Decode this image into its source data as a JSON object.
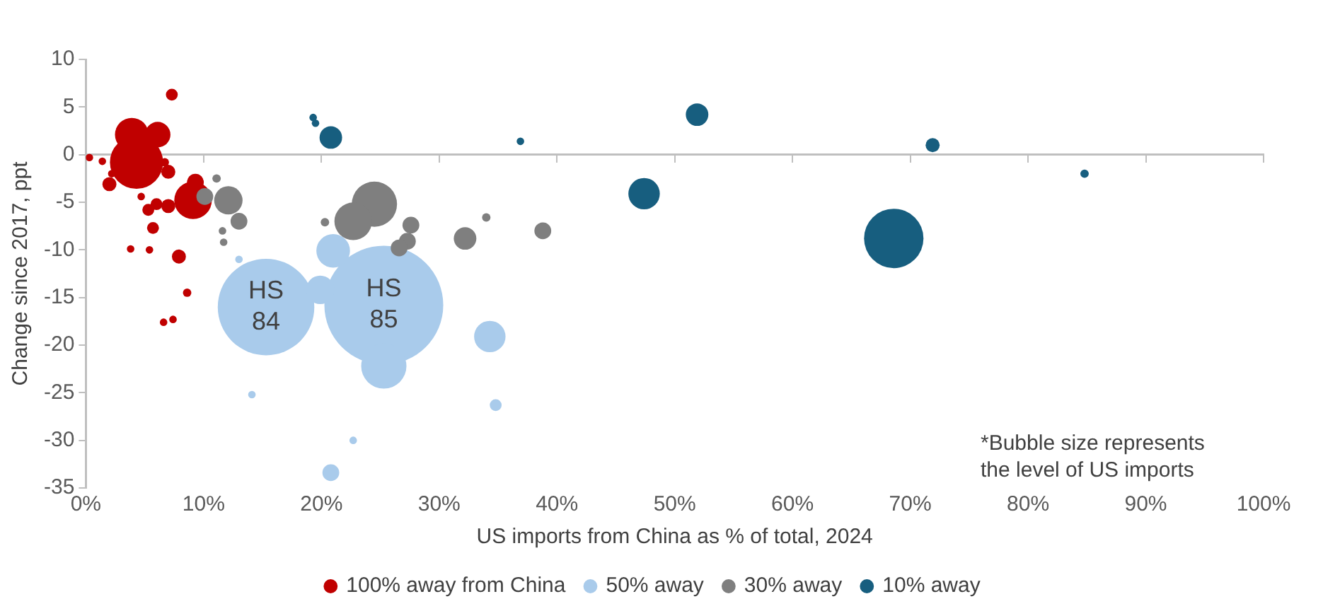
{
  "chart_data": {
    "type": "bubble",
    "xlabel": "US imports from China as % of total, 2024",
    "ylabel": "Change since 2017, ppt",
    "xlim": [
      0,
      100
    ],
    "xticks": [
      {
        "value": 0,
        "label": "0%"
      },
      {
        "value": 10,
        "label": "10%"
      },
      {
        "value": 20,
        "label": "20%"
      },
      {
        "value": 30,
        "label": "30%"
      },
      {
        "value": 40,
        "label": "40%"
      },
      {
        "value": 50,
        "label": "50%"
      },
      {
        "value": 60,
        "label": "60%"
      },
      {
        "value": 70,
        "label": "70%"
      },
      {
        "value": 80,
        "label": "80%"
      },
      {
        "value": 90,
        "label": "90%"
      },
      {
        "value": 100,
        "label": "100%"
      }
    ],
    "ylim": [
      -35,
      10
    ],
    "yticks": [
      -35,
      -30,
      -25,
      -20,
      -15,
      -10,
      -5,
      0,
      5,
      10
    ],
    "grid": false,
    "legend": "bottom",
    "ref_lines": [
      {
        "axis": "y",
        "value": 0,
        "color": "#bfbfbf"
      }
    ],
    "series": [
      {
        "name": "100% away from China",
        "color": "#c00000",
        "x": [
          7.3,
          3.9,
          6.1,
          4.3,
          6.7,
          7.0,
          2.0,
          9.1,
          9.3,
          5.3,
          6.0,
          7.0,
          5.7,
          7.9,
          8.6,
          3.8,
          5.4,
          6.6,
          7.4,
          0.3,
          1.4,
          2.2,
          4.7
        ],
        "values": [
          6.3,
          2.1,
          2.1,
          -0.8,
          -0.8,
          -1.8,
          -3.1,
          -4.8,
          -2.9,
          -5.8,
          -5.2,
          -5.4,
          -7.7,
          -10.7,
          -14.5,
          -9.9,
          -10.0,
          -17.6,
          -17.3,
          -0.3,
          -0.7,
          -2.0,
          -4.4
        ],
        "sizes": [
          0.01,
          0.08,
          0.046,
          0.2,
          0.005,
          0.014,
          0.014,
          0.1,
          0.02,
          0.01,
          0.01,
          0.014,
          0.01,
          0.014,
          0.005,
          0.004,
          0.004,
          0.004,
          0.004,
          0.004,
          0.004,
          0.004,
          0.004
        ]
      },
      {
        "name": "50% away",
        "color": "#a9cbeb",
        "x": [
          15.3,
          25.3,
          25.3,
          21.0,
          19.9,
          34.3,
          34.8,
          20.8,
          14.1,
          22.7,
          13.0
        ],
        "values": [
          -16.0,
          -15.8,
          -22.2,
          -10.1,
          -14.2,
          -19.1,
          -26.3,
          -33.4,
          -25.2,
          -30.0,
          -11.0
        ],
        "sizes": [
          0.66,
          1,
          0.145,
          0.08,
          0.057,
          0.07,
          0.01,
          0.02,
          0.004,
          0.004,
          0.004
        ]
      },
      {
        "name": "30% away",
        "color": "#7f7f7f",
        "x": [
          11.1,
          10.1,
          12.1,
          13.0,
          11.6,
          11.7,
          20.3,
          24.5,
          22.7,
          27.6,
          27.3,
          26.6,
          32.2,
          34.0,
          38.8
        ],
        "values": [
          -2.5,
          -4.4,
          -4.8,
          -7.0,
          -8.0,
          -9.2,
          -7.1,
          -5.2,
          -7.0,
          -7.4,
          -9.1,
          -9.8,
          -8.8,
          -6.6,
          -8.0
        ],
        "sizes": [
          0.005,
          0.02,
          0.057,
          0.02,
          0.004,
          0.004,
          0.005,
          0.145,
          0.1,
          0.02,
          0.02,
          0.02,
          0.036,
          0.005,
          0.02
        ]
      },
      {
        "name": "10% away",
        "color": "#175e7f",
        "x": [
          20.8,
          19.5,
          19.3,
          36.9,
          51.9,
          47.4,
          68.6,
          71.9,
          84.8
        ],
        "values": [
          1.8,
          3.3,
          3.9,
          1.4,
          4.2,
          -4.1,
          -8.8,
          1.0,
          -2.0
        ],
        "sizes": [
          0.036,
          0.004,
          0.004,
          0.004,
          0.036,
          0.07,
          0.25,
          0.014,
          0.005
        ]
      }
    ],
    "annotations": [
      {
        "text": "HS 84",
        "x": 15.3,
        "y": -16.0
      },
      {
        "text": "HS 85",
        "x": 25.3,
        "y": -15.8
      },
      "*Bubble size represents the level of US imports"
    ]
  }
}
